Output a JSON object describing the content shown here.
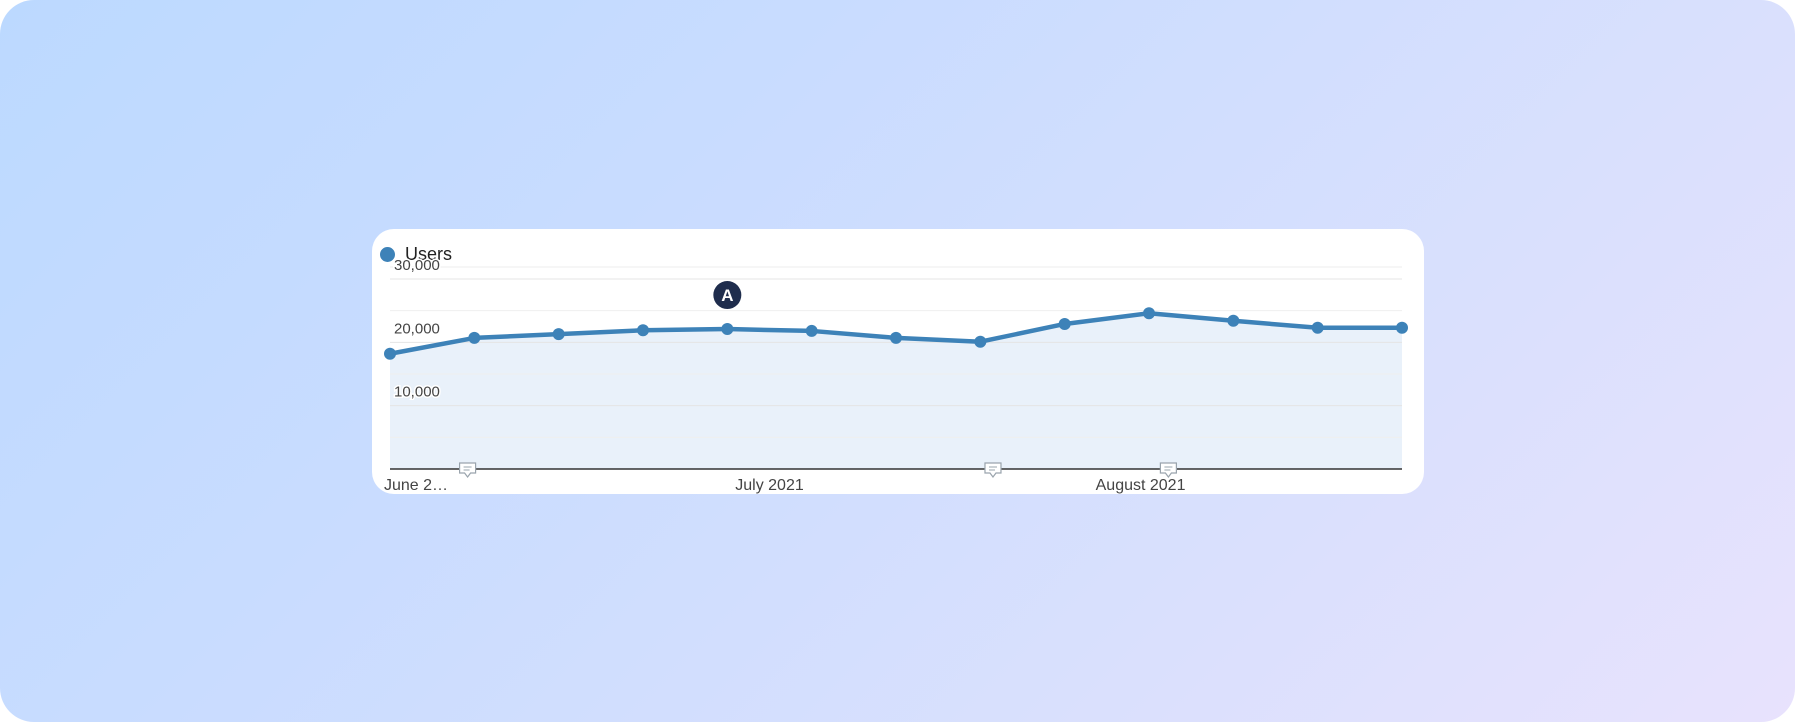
{
  "chart_data": {
    "type": "area",
    "series": [
      {
        "name": "Users",
        "color": "#3d82b8",
        "values": [
          18200,
          20700,
          21300,
          21900,
          22100,
          21800,
          20700,
          20100,
          22900,
          24600,
          23400,
          22300,
          22300
        ]
      }
    ],
    "ylim": [
      0,
      30000
    ],
    "y_ticks": [
      {
        "value": 30000,
        "label": "30,000"
      },
      {
        "value": 20000,
        "label": "20,000"
      },
      {
        "value": 10000,
        "label": "10,000"
      }
    ],
    "x_labels": [
      {
        "index": 0,
        "label": "June 2…"
      },
      {
        "index": 4.5,
        "label": "July 2021"
      },
      {
        "index": 8.9,
        "label": "August 2021"
      }
    ],
    "annotation_markers": [
      {
        "index": 4,
        "label": "A"
      }
    ],
    "note_icons": [
      {
        "index": 0.92,
        "icon": "comment-icon"
      },
      {
        "index": 7.15,
        "icon": "comment-icon"
      },
      {
        "index": 9.23,
        "icon": "comment-icon"
      }
    ],
    "grid": true,
    "legend": "top-left",
    "fill_color": "#e9f1fa",
    "grid_color": "#e4e4e4"
  }
}
